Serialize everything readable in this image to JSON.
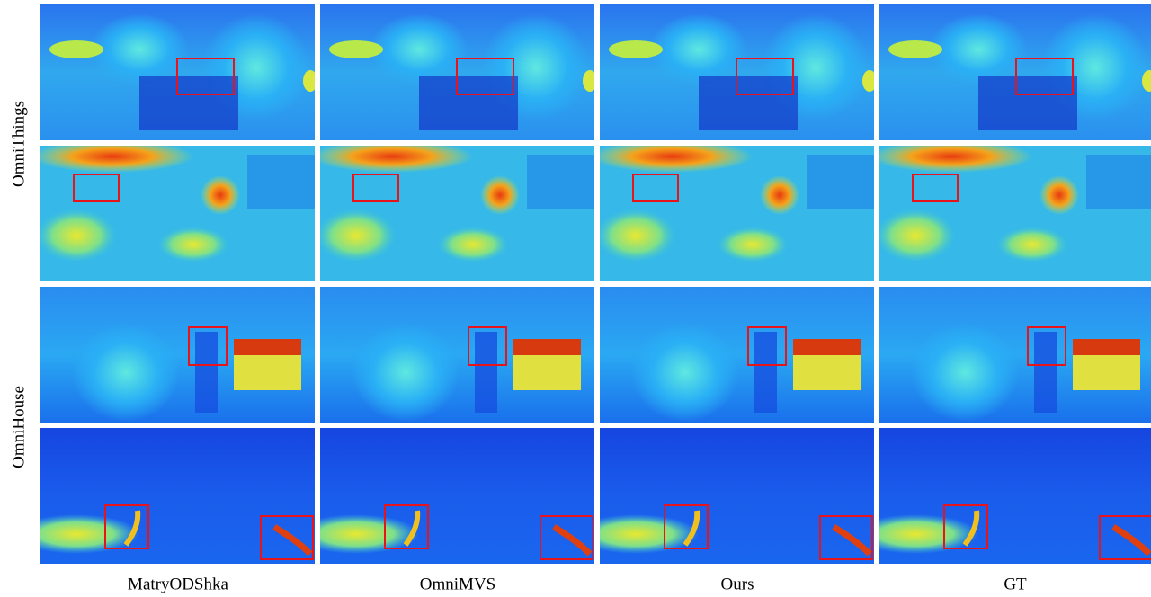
{
  "figure": {
    "row_groups": [
      "OmniThings",
      "OmniHouse"
    ],
    "columns": [
      "MatryODShka",
      "OmniMVS",
      "Ours",
      "GT"
    ]
  }
}
